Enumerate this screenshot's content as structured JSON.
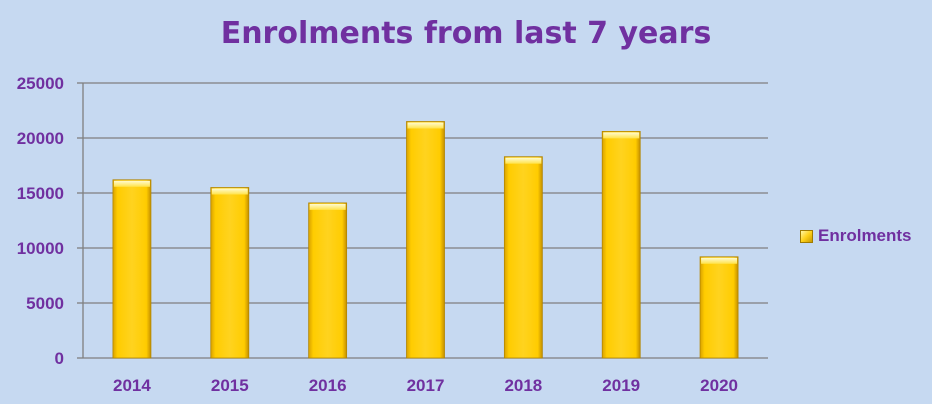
{
  "chart_data": {
    "type": "bar",
    "title": "Enrolments from last 7 years",
    "categories": [
      "2014",
      "2015",
      "2016",
      "2017",
      "2018",
      "2019",
      "2020"
    ],
    "series": [
      {
        "name": "Enrolments",
        "values": [
          16200,
          15500,
          14100,
          21500,
          18300,
          20600,
          9200
        ]
      }
    ],
    "ylim": [
      0,
      25000
    ],
    "yticks": [
      "0",
      "5000",
      "10000",
      "15000",
      "20000",
      "25000"
    ],
    "grid": true,
    "legend_position": "right",
    "colors": {
      "bar": "#ffc800",
      "bar_highlight": "#fff48a",
      "bar_shadow": "#b38600",
      "text": "#7030a0",
      "grid": "#7f7f7f",
      "background": "#c6d9f1"
    }
  }
}
